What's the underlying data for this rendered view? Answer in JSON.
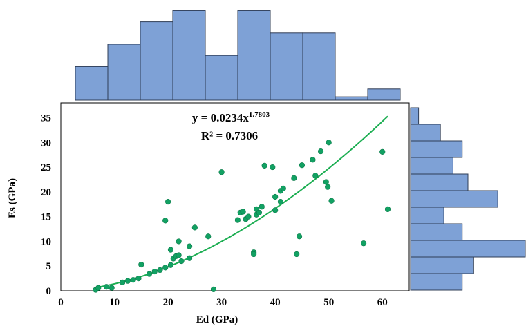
{
  "chart_data": {
    "type": "scatter",
    "equation": {
      "base": "y = 0.0234x",
      "exponent": "1.7803",
      "r_squared": "R² = 0.7306"
    },
    "xlabel": "Ed (GPa)",
    "ylabel": "Es (GPa)",
    "xlim": [
      0,
      65
    ],
    "ylim": [
      0,
      38
    ],
    "x_ticks": [
      0,
      10,
      20,
      30,
      40,
      50,
      60
    ],
    "y_ticks": [
      0,
      5,
      10,
      15,
      20,
      25,
      30,
      35
    ],
    "marker_color": "#12A163",
    "trend_color": "#1CAE52",
    "hist_fill": "#7EA1D6",
    "hist_stroke": "#2F3D55",
    "trendline": {
      "a": 0.0234,
      "b": 1.7803,
      "x_start": 6.5,
      "x_end": 61
    },
    "points": [
      [
        6.5,
        0.2
      ],
      [
        7,
        0.6
      ],
      [
        8.5,
        0.8
      ],
      [
        9.5,
        0.6
      ],
      [
        11.5,
        1.7
      ],
      [
        12.5,
        2.0
      ],
      [
        13.5,
        2.2
      ],
      [
        14.5,
        2.5
      ],
      [
        15,
        5.3
      ],
      [
        16.5,
        3.4
      ],
      [
        17.5,
        3.9
      ],
      [
        18.5,
        4.2
      ],
      [
        19.5,
        4.7
      ],
      [
        19.5,
        14.2
      ],
      [
        20,
        18.0
      ],
      [
        20.5,
        5.2
      ],
      [
        20.5,
        8.3
      ],
      [
        21,
        6.5
      ],
      [
        21.5,
        7.0
      ],
      [
        22,
        7.2
      ],
      [
        22,
        10.0
      ],
      [
        22.5,
        6.0
      ],
      [
        24,
        6.6
      ],
      [
        24,
        9.0
      ],
      [
        25,
        12.8
      ],
      [
        27.5,
        11.0
      ],
      [
        28.5,
        0.3
      ],
      [
        30,
        24.0
      ],
      [
        33,
        14.3
      ],
      [
        33.5,
        15.8
      ],
      [
        34,
        16.0
      ],
      [
        34.5,
        14.5
      ],
      [
        35,
        15.0
      ],
      [
        36,
        7.8
      ],
      [
        36,
        7.4
      ],
      [
        36.5,
        16.5
      ],
      [
        36.5,
        15.4
      ],
      [
        37,
        15.8
      ],
      [
        37.5,
        17.0
      ],
      [
        38,
        25.3
      ],
      [
        39.5,
        25.0
      ],
      [
        40,
        19.0
      ],
      [
        40,
        16.3
      ],
      [
        41,
        18.0
      ],
      [
        41,
        20.2
      ],
      [
        41.5,
        20.7
      ],
      [
        43.5,
        22.8
      ],
      [
        44,
        7.4
      ],
      [
        44.5,
        11.0
      ],
      [
        45,
        25.4
      ],
      [
        47,
        26.5
      ],
      [
        47.5,
        23.3
      ],
      [
        48.5,
        28.2
      ],
      [
        49.5,
        22.0
      ],
      [
        49.8,
        21.0
      ],
      [
        50,
        30.0
      ],
      [
        50.5,
        18.2
      ],
      [
        56.5,
        9.6
      ],
      [
        60,
        28.1
      ],
      [
        61,
        16.5
      ]
    ],
    "top_histogram": {
      "counts": [
        3,
        5,
        7,
        8,
        4,
        8,
        6,
        6,
        0.3,
        1
      ]
    },
    "right_histogram": {
      "counts": [
        0.7,
        2.6,
        4.5,
        3.7,
        5,
        7.6,
        2.9,
        4.5,
        10,
        5.5,
        4.5
      ]
    }
  }
}
